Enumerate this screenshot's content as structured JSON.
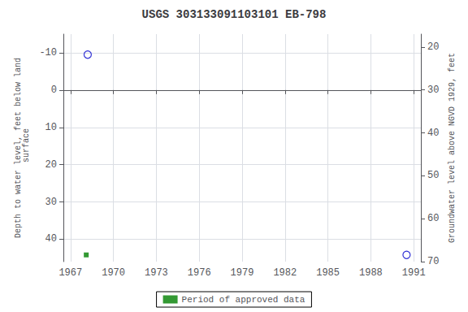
{
  "chart_data": {
    "type": "scatter",
    "title": "USGS 303133091103101 EB-798",
    "ylabel": "Depth to water level, feet below land\n surface",
    "y2label": "Groundwater level above NGVD 1929, feet",
    "xlim": [
      1966.5,
      1991.5
    ],
    "xticks": [
      1967,
      1970,
      1973,
      1976,
      1979,
      1982,
      1985,
      1988,
      1991
    ],
    "ylim": [
      46,
      -15
    ],
    "yticks": [
      -10,
      0,
      10,
      20,
      30,
      40
    ],
    "y2lim": [
      70,
      17
    ],
    "y2ticks": [
      70,
      60,
      50,
      40,
      30,
      20
    ],
    "grid": true,
    "legend": "bottom",
    "series": [
      {
        "color": "#0000cc",
        "marker": "open_circle",
        "x": [
          1968.2,
          1990.5
        ],
        "values": [
          -9.5,
          44.2
        ]
      },
      {
        "name": "Period of approved data",
        "color": "#008000",
        "marker": "square",
        "x": [
          1968.1
        ],
        "values": [
          44.2
        ]
      }
    ]
  }
}
